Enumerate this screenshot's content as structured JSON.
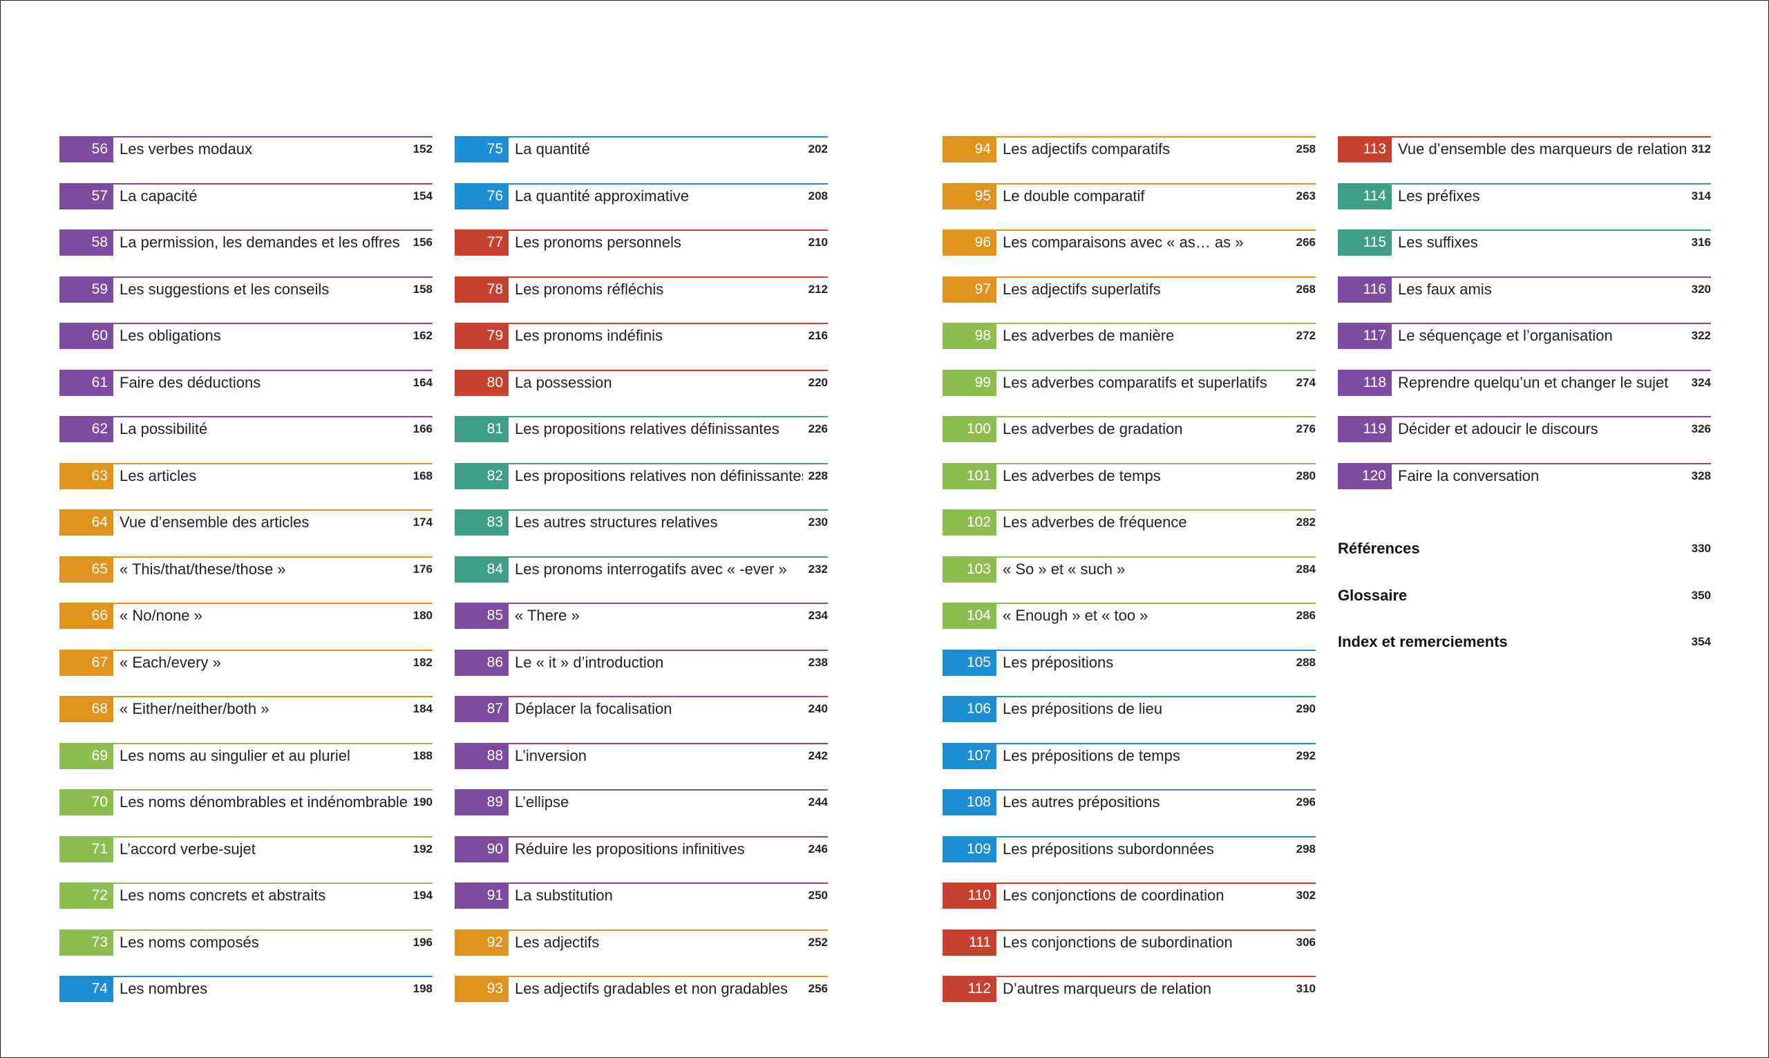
{
  "colors": {
    "purple": "#7d4c9f",
    "orange": "#e0921f",
    "green": "#8cbd4e",
    "blue": "#1e8ed4",
    "red": "#c8402e",
    "teal": "#3e9f86"
  },
  "columns": [
    [
      {
        "num": "56",
        "title": "Les verbes modaux",
        "page": "152",
        "color": "purple"
      },
      {
        "num": "57",
        "title": "La capacité",
        "page": "154",
        "color": "purple"
      },
      {
        "num": "58",
        "title": "La permission, les demandes et les offres",
        "page": "156",
        "color": "purple"
      },
      {
        "num": "59",
        "title": "Les suggestions et les conseils",
        "page": "158",
        "color": "purple"
      },
      {
        "num": "60",
        "title": "Les obligations",
        "page": "162",
        "color": "purple"
      },
      {
        "num": "61",
        "title": "Faire des déductions",
        "page": "164",
        "color": "purple"
      },
      {
        "num": "62",
        "title": "La possibilité",
        "page": "166",
        "color": "purple"
      },
      {
        "num": "63",
        "title": "Les articles",
        "page": "168",
        "color": "orange"
      },
      {
        "num": "64",
        "title": "Vue d’ensemble des articles",
        "page": "174",
        "color": "orange"
      },
      {
        "num": "65",
        "title": "« This/that/these/those »",
        "page": "176",
        "color": "orange"
      },
      {
        "num": "66",
        "title": "« No/none »",
        "page": "180",
        "color": "orange"
      },
      {
        "num": "67",
        "title": "« Each/every »",
        "page": "182",
        "color": "orange"
      },
      {
        "num": "68",
        "title": "« Either/neither/both »",
        "page": "184",
        "color": "orange"
      },
      {
        "num": "69",
        "title": "Les noms au singulier et au pluriel",
        "page": "188",
        "color": "green"
      },
      {
        "num": "70",
        "title": "Les noms dénombrables et indénombrables",
        "page": "190",
        "color": "green"
      },
      {
        "num": "71",
        "title": "L’accord verbe-sujet",
        "page": "192",
        "color": "green"
      },
      {
        "num": "72",
        "title": "Les noms concrets et abstraits",
        "page": "194",
        "color": "green"
      },
      {
        "num": "73",
        "title": "Les noms composés",
        "page": "196",
        "color": "green"
      },
      {
        "num": "74",
        "title": "Les nombres",
        "page": "198",
        "color": "blue"
      }
    ],
    [
      {
        "num": "75",
        "title": "La quantité",
        "page": "202",
        "color": "blue"
      },
      {
        "num": "76",
        "title": "La quantité approximative",
        "page": "208",
        "color": "blue"
      },
      {
        "num": "77",
        "title": "Les pronoms personnels",
        "page": "210",
        "color": "red"
      },
      {
        "num": "78",
        "title": "Les pronoms réfléchis",
        "page": "212",
        "color": "red"
      },
      {
        "num": "79",
        "title": "Les pronoms indéfinis",
        "page": "216",
        "color": "red"
      },
      {
        "num": "80",
        "title": "La possession",
        "page": "220",
        "color": "red"
      },
      {
        "num": "81",
        "title": "Les propositions relatives définissantes",
        "page": "226",
        "color": "teal"
      },
      {
        "num": "82",
        "title": "Les propositions relatives non définissantes",
        "page": "228",
        "color": "teal"
      },
      {
        "num": "83",
        "title": "Les autres structures relatives",
        "page": "230",
        "color": "teal"
      },
      {
        "num": "84",
        "title": "Les pronoms interrogatifs avec « -ever »",
        "page": "232",
        "color": "teal"
      },
      {
        "num": "85",
        "title": "« There »",
        "page": "234",
        "color": "purple"
      },
      {
        "num": "86",
        "title": "Le « it » d’introduction",
        "page": "238",
        "color": "purple"
      },
      {
        "num": "87",
        "title": "Déplacer la focalisation",
        "page": "240",
        "color": "purple"
      },
      {
        "num": "88",
        "title": "L’inversion",
        "page": "242",
        "color": "purple"
      },
      {
        "num": "89",
        "title": "L’ellipse",
        "page": "244",
        "color": "purple"
      },
      {
        "num": "90",
        "title": "Réduire les propositions infinitives",
        "page": "246",
        "color": "purple"
      },
      {
        "num": "91",
        "title": "La substitution",
        "page": "250",
        "color": "purple"
      },
      {
        "num": "92",
        "title": "Les adjectifs",
        "page": "252",
        "color": "orange"
      },
      {
        "num": "93",
        "title": "Les adjectifs gradables et non gradables",
        "page": "256",
        "color": "orange"
      }
    ],
    [
      {
        "num": "94",
        "title": "Les adjectifs comparatifs",
        "page": "258",
        "color": "orange"
      },
      {
        "num": "95",
        "title": "Le double comparatif",
        "page": "263",
        "color": "orange"
      },
      {
        "num": "96",
        "title": "Les comparaisons avec « as… as »",
        "page": "266",
        "color": "orange"
      },
      {
        "num": "97",
        "title": "Les adjectifs superlatifs",
        "page": "268",
        "color": "orange"
      },
      {
        "num": "98",
        "title": "Les adverbes de manière",
        "page": "272",
        "color": "green"
      },
      {
        "num": "99",
        "title": "Les adverbes comparatifs et superlatifs",
        "page": "274",
        "color": "green"
      },
      {
        "num": "100",
        "title": "Les adverbes de gradation",
        "page": "276",
        "color": "green"
      },
      {
        "num": "101",
        "title": "Les adverbes de temps",
        "page": "280",
        "color": "green"
      },
      {
        "num": "102",
        "title": "Les adverbes de fréquence",
        "page": "282",
        "color": "green"
      },
      {
        "num": "103",
        "title": "« So » et « such »",
        "page": "284",
        "color": "green"
      },
      {
        "num": "104",
        "title": "« Enough » et « too »",
        "page": "286",
        "color": "green"
      },
      {
        "num": "105",
        "title": "Les prépositions",
        "page": "288",
        "color": "blue"
      },
      {
        "num": "106",
        "title": "Les prépositions de lieu",
        "page": "290",
        "color": "blue"
      },
      {
        "num": "107",
        "title": "Les prépositions de temps",
        "page": "292",
        "color": "blue"
      },
      {
        "num": "108",
        "title": "Les autres prépositions",
        "page": "296",
        "color": "blue"
      },
      {
        "num": "109",
        "title": "Les prépositions subordonnées",
        "page": "298",
        "color": "blue"
      },
      {
        "num": "110",
        "title": "Les conjonctions de coordination",
        "page": "302",
        "color": "red"
      },
      {
        "num": "111",
        "title": "Les conjonctions de subordination",
        "page": "306",
        "color": "red"
      },
      {
        "num": "112",
        "title": "D’autres marqueurs de relation",
        "page": "310",
        "color": "red"
      }
    ],
    [
      {
        "num": "113",
        "title": "Vue d’ensemble des marqueurs de relation",
        "page": "312",
        "color": "red"
      },
      {
        "num": "114",
        "title": "Les préfixes",
        "page": "314",
        "color": "teal"
      },
      {
        "num": "115",
        "title": "Les suffixes",
        "page": "316",
        "color": "teal"
      },
      {
        "num": "116",
        "title": "Les faux amis",
        "page": "320",
        "color": "purple"
      },
      {
        "num": "117",
        "title": "Le séquençage et l’organisation",
        "page": "322",
        "color": "purple"
      },
      {
        "num": "118",
        "title": "Reprendre quelqu’un et changer le sujet",
        "page": "324",
        "color": "purple"
      },
      {
        "num": "119",
        "title": "Décider et adoucir le discours",
        "page": "326",
        "color": "purple"
      },
      {
        "num": "120",
        "title": "Faire la conversation",
        "page": "328",
        "color": "purple"
      }
    ]
  ],
  "references": [
    {
      "title": "Références",
      "page": "330"
    },
    {
      "title": "Glossaire",
      "page": "350"
    },
    {
      "title": "Index et remerciements",
      "page": "354"
    }
  ]
}
